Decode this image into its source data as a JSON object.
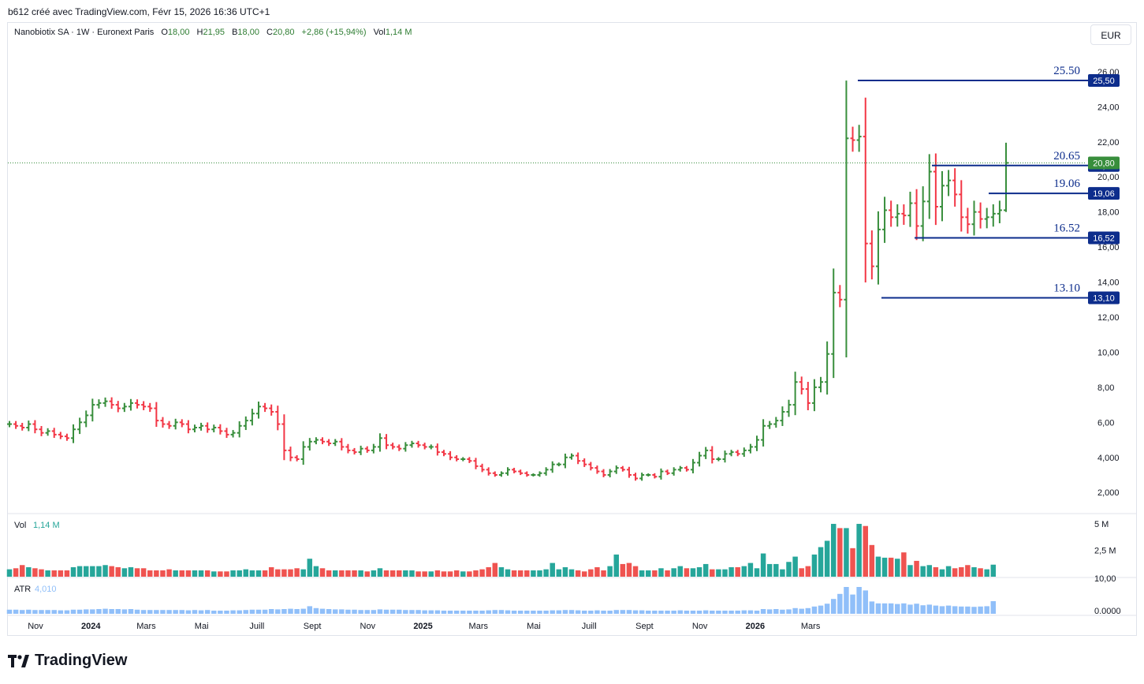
{
  "header": {
    "credit": "b612 créé avec TradingView.com, Févr 15, 2026 16:36 UTC+1",
    "symbol": "Nanobiotix SA · 1W · Euronext Paris",
    "o_label": "O",
    "o_value": "18,00",
    "h_label": "H",
    "h_value": "21,95",
    "b_label": "B",
    "b_value": "18,00",
    "c_label": "C",
    "c_value": "20,80",
    "change": "+2,86 (+15,94%)",
    "vol_label": "Vol",
    "vol_value": "1,14 M",
    "currency": "EUR"
  },
  "brand": {
    "name": "TradingView"
  },
  "colors": {
    "up": "#388e3c",
    "down": "#f23645",
    "vol_up": "#26a69a",
    "vol_down": "#ef5350",
    "level": "#0d2d8c",
    "atr": "#90bff9"
  },
  "chart_data": {
    "type": "bar",
    "subtype": "ohlc",
    "y_range": [
      1.2,
      27.3
    ],
    "y_ticks": [
      "2,000",
      "4,000",
      "6,00",
      "8,00",
      "10,00",
      "12,00",
      "14,00",
      "16,00",
      "18,00",
      "20,00",
      "22,00",
      "24,00",
      "26,00"
    ],
    "x_ticks": [
      "Nov",
      "2024",
      "Mars",
      "Mai",
      "Juill",
      "Sept",
      "Nov",
      "2025",
      "Mars",
      "Mai",
      "Juill",
      "Sept",
      "Nov",
      "2026",
      "Mars"
    ],
    "x_tick_bold": [
      "2024",
      "2025",
      "2026"
    ],
    "close_series": [
      5.9,
      5.8,
      5.7,
      5.9,
      5.6,
      5.4,
      5.5,
      5.3,
      5.2,
      5.1,
      5.6,
      6.0,
      6.4,
      7.0,
      7.1,
      7.2,
      7.0,
      6.8,
      6.9,
      7.1,
      7.0,
      6.9,
      6.8,
      6.1,
      5.9,
      5.8,
      6.0,
      5.9,
      5.6,
      5.7,
      5.8,
      5.6,
      5.7,
      5.5,
      5.3,
      5.4,
      5.8,
      6.1,
      6.5,
      6.9,
      6.8,
      6.6,
      5.9,
      4.4,
      4.0,
      3.9,
      4.6,
      4.9,
      5.0,
      4.9,
      4.8,
      4.9,
      4.6,
      4.4,
      4.3,
      4.5,
      4.4,
      4.6,
      5.1,
      4.7,
      4.6,
      4.5,
      4.7,
      4.8,
      4.7,
      4.6,
      4.6,
      4.3,
      4.2,
      4.0,
      3.9,
      3.9,
      3.8,
      3.5,
      3.3,
      3.1,
      3.0,
      3.1,
      3.3,
      3.2,
      3.1,
      3.0,
      3.0,
      3.1,
      3.3,
      3.6,
      3.6,
      4.0,
      4.1,
      3.8,
      3.6,
      3.4,
      3.2,
      3.0,
      3.2,
      3.4,
      3.3,
      3.0,
      2.8,
      3.0,
      3.0,
      2.9,
      3.2,
      3.1,
      3.3,
      3.4,
      3.3,
      3.7,
      4.1,
      4.4,
      3.9,
      3.9,
      4.2,
      4.3,
      4.2,
      4.4,
      4.6,
      5.0,
      5.8,
      5.9,
      6.1,
      6.6,
      7.0,
      8.3,
      7.9,
      7.1,
      8.0,
      8.3,
      9.9,
      13.4,
      13.0,
      22.2,
      22.1,
      22.3,
      16.2,
      14.9,
      17.0,
      18.1,
      17.7,
      17.9,
      17.8,
      18.5,
      17.2,
      18.6,
      20.3,
      18.3,
      19.5,
      19.8,
      19.0,
      17.7,
      17.3,
      18.0,
      17.6,
      17.7,
      17.9,
      18.1,
      20.8
    ],
    "levels": [
      {
        "label": "25.50",
        "badge": "25,50",
        "value": 25.5
      },
      {
        "label": "20.65",
        "badge": "20,65",
        "value": 20.65
      },
      {
        "label": "19.06",
        "badge": "19,06",
        "value": 19.06
      },
      {
        "label": "16.52",
        "badge": "16,52",
        "value": 16.52
      },
      {
        "label": "13.10",
        "badge": "13,10",
        "value": 13.1
      }
    ],
    "last_price": {
      "badge": "20,80",
      "value": 20.8
    },
    "volume": {
      "label": "Vol",
      "value_label": "1,14 M",
      "ticks": [
        "5 M",
        "2,5 M"
      ],
      "max": 5.6,
      "values": [
        0.7,
        0.8,
        1.1,
        0.9,
        0.8,
        0.7,
        0.6,
        0.6,
        0.6,
        0.6,
        0.9,
        1.0,
        1.0,
        1.0,
        1.0,
        1.1,
        1.0,
        0.9,
        0.8,
        0.9,
        0.8,
        0.8,
        0.6,
        0.6,
        0.6,
        0.7,
        0.6,
        0.6,
        0.6,
        0.6,
        0.6,
        0.6,
        0.5,
        0.5,
        0.5,
        0.6,
        0.6,
        0.7,
        0.6,
        0.6,
        0.6,
        0.9,
        0.7,
        0.7,
        0.7,
        0.8,
        0.7,
        1.7,
        1.0,
        0.8,
        0.6,
        0.6,
        0.6,
        0.6,
        0.6,
        0.6,
        0.5,
        0.6,
        0.8,
        0.6,
        0.6,
        0.6,
        0.6,
        0.6,
        0.5,
        0.5,
        0.5,
        0.6,
        0.5,
        0.5,
        0.6,
        0.5,
        0.5,
        0.6,
        0.7,
        0.9,
        1.3,
        0.9,
        0.7,
        0.6,
        0.6,
        0.6,
        0.6,
        0.6,
        0.7,
        1.3,
        0.7,
        0.9,
        0.7,
        0.6,
        0.5,
        0.7,
        0.9,
        0.6,
        1.0,
        2.1,
        1.2,
        1.3,
        1.0,
        0.6,
        0.6,
        0.6,
        0.8,
        0.6,
        0.8,
        1.0,
        0.8,
        0.8,
        0.9,
        1.2,
        0.7,
        0.7,
        0.7,
        0.9,
        0.9,
        1.0,
        1.3,
        0.8,
        2.2,
        1.2,
        1.2,
        0.7,
        1.4,
        1.9,
        0.8,
        1.0,
        2.1,
        2.8,
        3.4,
        5.0,
        4.6,
        4.6,
        2.7,
        5.0,
        4.8,
        3.0,
        1.9,
        1.8,
        1.8,
        1.7,
        2.3,
        1.1,
        1.5,
        1.0,
        1.1,
        0.9,
        0.7,
        1.0,
        0.8,
        0.9,
        1.1,
        0.9,
        0.8,
        0.7,
        1.14
      ]
    },
    "atr": {
      "label": "ATR",
      "value_label": "4,010",
      "ticks": [
        "10,00",
        "0.0000"
      ],
      "max": 10.5,
      "values": [
        1.3,
        1.3,
        1.2,
        1.3,
        1.2,
        1.2,
        1.2,
        1.2,
        1.1,
        1.1,
        1.3,
        1.3,
        1.4,
        1.4,
        1.5,
        1.6,
        1.5,
        1.5,
        1.4,
        1.5,
        1.3,
        1.2,
        1.2,
        1.2,
        1.2,
        1.2,
        1.2,
        1.2,
        1.1,
        1.2,
        1.1,
        1.2,
        1.0,
        1.0,
        1.0,
        1.1,
        1.1,
        1.2,
        1.3,
        1.3,
        1.3,
        1.5,
        1.4,
        1.5,
        1.6,
        1.5,
        1.6,
        2.4,
        1.8,
        1.6,
        1.5,
        1.4,
        1.4,
        1.3,
        1.3,
        1.2,
        1.2,
        1.2,
        1.4,
        1.3,
        1.3,
        1.3,
        1.2,
        1.2,
        1.2,
        1.1,
        1.1,
        1.1,
        1.0,
        1.0,
        1.0,
        1.0,
        1.0,
        1.0,
        1.0,
        1.1,
        1.2,
        1.2,
        1.1,
        1.0,
        1.0,
        1.0,
        1.0,
        1.0,
        1.0,
        1.1,
        1.1,
        1.2,
        1.2,
        1.1,
        1.0,
        1.0,
        1.1,
        1.0,
        1.0,
        1.2,
        1.2,
        1.2,
        1.1,
        1.1,
        1.0,
        1.0,
        1.0,
        1.0,
        1.0,
        1.1,
        1.0,
        1.0,
        1.0,
        1.1,
        1.0,
        1.0,
        1.0,
        1.0,
        1.0,
        1.1,
        1.1,
        1.0,
        1.5,
        1.4,
        1.5,
        1.3,
        1.4,
        1.8,
        1.6,
        1.8,
        2.3,
        2.6,
        3.2,
        4.7,
        6.3,
        8.5,
        6.1,
        8.5,
        7.4,
        3.9,
        3.3,
        3.3,
        3.3,
        3.1,
        3.3,
        2.9,
        3.2,
        2.7,
        2.9,
        2.6,
        2.4,
        2.6,
        2.4,
        2.3,
        2.3,
        2.2,
        2.3,
        2.4,
        4.0
      ]
    }
  }
}
